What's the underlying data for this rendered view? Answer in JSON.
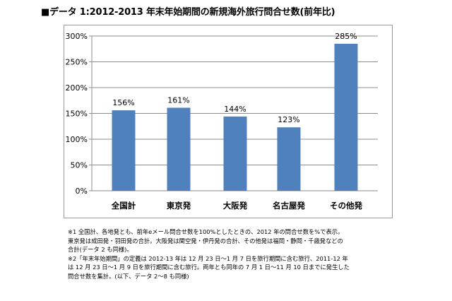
{
  "title": "■データ 1:2012-2013 年末年始期間の新規海外旅行問合せ数(前年比)",
  "chart_data": {
    "type": "bar",
    "categories": [
      "全国計",
      "東京発",
      "大阪発",
      "名古屋発",
      "その他発"
    ],
    "values": [
      156,
      161,
      144,
      123,
      285
    ],
    "value_labels": [
      "156%",
      "161%",
      "144%",
      "123%",
      "285%"
    ],
    "ylim": [
      0,
      300
    ],
    "yticks": [
      "0%",
      "50%",
      "100%",
      "150%",
      "200%",
      "250%",
      "300%"
    ],
    "grid": true,
    "legend": "none",
    "bar_color": "#4f81bd"
  },
  "notes": [
    "※1 全国計、各地発とも、前年eメール問合せ数を100%としたときの、2012 年の問合せ数を%で表示。",
    "東京発は成田発・羽田発の合計。大阪発は関空発・伊丹発の合計、その他発は福岡・静岡・千歳発などの",
    "合計(データ 2 も同様)。",
    "※2「年末年始期間」の定義は 2012-13 年は 12 月 23 日～1 月 7 日を旅行期間に含む旅行、2011-12 年",
    "は 12 月 23 日～1 月 9 日を旅行期間に含む旅行。両年とも同年の 7 月 1 日～11 月 10 日までに発生した",
    "問合せ数を集計。(以下、データ 2～8 も同様)"
  ]
}
